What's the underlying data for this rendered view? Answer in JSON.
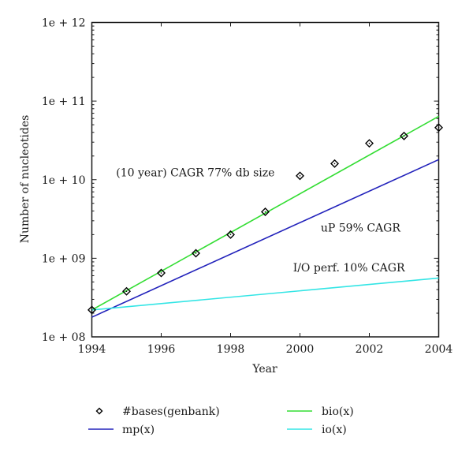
{
  "chart_data": {
    "type": "scatter",
    "title": "",
    "xlabel": "Year",
    "ylabel": "Number of nucleotides",
    "xlim": [
      1994,
      2004
    ],
    "ylim": [
      100000000.0,
      1000000000000.0
    ],
    "yscale": "log",
    "x_ticks": [
      1994,
      1996,
      1998,
      2000,
      2002,
      2004
    ],
    "x_tick_labels": [
      "1994",
      "1996",
      "1998",
      "2000",
      "2002",
      "2004"
    ],
    "y_ticks": [
      100000000.0,
      1000000000.0,
      10000000000.0,
      100000000000.0,
      1000000000000.0
    ],
    "y_tick_labels": [
      "1e + 08",
      "1e + 09",
      "1e + 10",
      "1e + 11",
      "1e + 12"
    ],
    "grid": false,
    "legend_position": "bottom",
    "series": [
      {
        "name": "#bases(genbank)",
        "kind": "points",
        "marker": "diamond",
        "color": "#000000",
        "x": [
          1994,
          1995,
          1996,
          1997,
          1998,
          1999,
          2000,
          2001,
          2002,
          2003,
          2004
        ],
        "y": [
          220000000.0,
          380000000.0,
          650000000.0,
          1160000000.0,
          2000000000.0,
          3900000000.0,
          11200000000.0,
          16000000000.0,
          29000000000.0,
          36000000000.0,
          46000000000.0
        ]
      },
      {
        "name": "bio(x)",
        "kind": "line",
        "color": "#33dd33",
        "x": [
          1994,
          2004
        ],
        "y": [
          220000000.0,
          64000000000.0
        ]
      },
      {
        "name": "mp(x)",
        "kind": "line",
        "color": "#2222bb",
        "x": [
          1994,
          2004
        ],
        "y": [
          178000000.0,
          18000000000.0
        ]
      },
      {
        "name": "io(x)",
        "kind": "line",
        "color": "#33e5e5",
        "x": [
          1994,
          2004
        ],
        "y": [
          220000000.0,
          560000000.0
        ]
      }
    ],
    "annotations": [
      {
        "text": "(10 year) CAGR 77% db size",
        "x": 1994.7,
        "y": 11000000000.0
      },
      {
        "text": "uP 59% CAGR",
        "x": 2000.6,
        "y": 2200000000.0
      },
      {
        "text": "I/O perf. 10% CAGR",
        "x": 1999.8,
        "y": 680000000.0
      }
    ],
    "legend": [
      {
        "label": "#bases(genbank)",
        "series": 0
      },
      {
        "label": "bio(x)",
        "series": 1
      },
      {
        "label": "mp(x)",
        "series": 2
      },
      {
        "label": "io(x)",
        "series": 3
      }
    ]
  }
}
